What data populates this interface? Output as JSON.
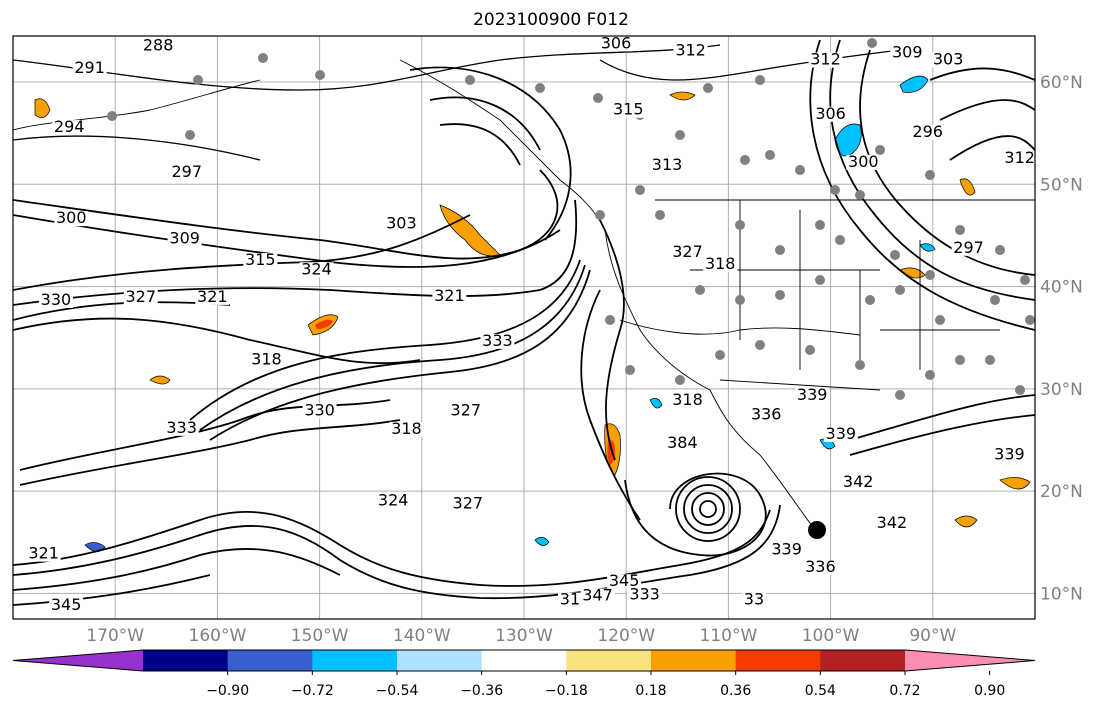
{
  "title": "2023100900 F012",
  "map": {
    "lon_range": [
      -180,
      -80
    ],
    "lat_range": [
      7.5,
      64.5
    ],
    "lon_ticks": [
      {
        "value": -170,
        "label": "170°W"
      },
      {
        "value": -160,
        "label": "160°W"
      },
      {
        "value": -150,
        "label": "150°W"
      },
      {
        "value": -140,
        "label": "140°W"
      },
      {
        "value": -130,
        "label": "130°W"
      },
      {
        "value": -120,
        "label": "120°W"
      },
      {
        "value": -110,
        "label": "110°W"
      },
      {
        "value": -100,
        "label": "100°W"
      },
      {
        "value": -90,
        "label": "90°W"
      }
    ],
    "lat_ticks": [
      {
        "value": 10,
        "label": "10°N"
      },
      {
        "value": 20,
        "label": "20°N"
      },
      {
        "value": 30,
        "label": "30°N"
      },
      {
        "value": 40,
        "label": "40°N"
      },
      {
        "value": 50,
        "label": "50°N"
      },
      {
        "value": 60,
        "label": "60°N"
      }
    ],
    "contour_labels": [
      {
        "text": "288",
        "lon": -165.8,
        "lat": 63.2
      },
      {
        "text": "291",
        "lon": -172.5,
        "lat": 61.0
      },
      {
        "text": "294",
        "lon": -174.5,
        "lat": 55.2
      },
      {
        "text": "297",
        "lon": -163.0,
        "lat": 50.8
      },
      {
        "text": "300",
        "lon": -174.3,
        "lat": 46.3
      },
      {
        "text": "309",
        "lon": -163.2,
        "lat": 44.3
      },
      {
        "text": "315",
        "lon": -155.8,
        "lat": 42.2
      },
      {
        "text": "324",
        "lon": -150.3,
        "lat": 41.3
      },
      {
        "text": "330",
        "lon": -175.8,
        "lat": 38.3
      },
      {
        "text": "327",
        "lon": -167.5,
        "lat": 38.6
      },
      {
        "text": "321",
        "lon": -160.5,
        "lat": 38.6
      },
      {
        "text": "318",
        "lon": -155.2,
        "lat": 32.5
      },
      {
        "text": "333",
        "lon": -163.5,
        "lat": 25.8
      },
      {
        "text": "330",
        "lon": -150.0,
        "lat": 27.5
      },
      {
        "text": "318",
        "lon": -141.5,
        "lat": 25.7
      },
      {
        "text": "327",
        "lon": -135.7,
        "lat": 27.5
      },
      {
        "text": "324",
        "lon": -142.8,
        "lat": 18.7
      },
      {
        "text": "327",
        "lon": -135.5,
        "lat": 18.4
      },
      {
        "text": "321",
        "lon": -177.0,
        "lat": 13.5
      },
      {
        "text": "345",
        "lon": -174.8,
        "lat": 8.5
      },
      {
        "text": "345",
        "lon": -120.2,
        "lat": 10.8
      },
      {
        "text": "347",
        "lon": -122.8,
        "lat": 9.4
      },
      {
        "text": "333",
        "lon": -118.2,
        "lat": 9.5
      },
      {
        "text": "31",
        "lon": -125.5,
        "lat": 9.0
      },
      {
        "text": "339",
        "lon": -104.3,
        "lat": 13.9
      },
      {
        "text": "342",
        "lon": -97.3,
        "lat": 20.5
      },
      {
        "text": "342",
        "lon": -94.0,
        "lat": 16.5
      },
      {
        "text": "339",
        "lon": -82.5,
        "lat": 23.2
      },
      {
        "text": "306",
        "lon": -121.0,
        "lat": 63.4
      },
      {
        "text": "312",
        "lon": -113.7,
        "lat": 62.7
      },
      {
        "text": "312",
        "lon": -100.5,
        "lat": 61.8
      },
      {
        "text": "309",
        "lon": -92.5,
        "lat": 62.5
      },
      {
        "text": "303",
        "lon": -88.5,
        "lat": 61.8
      },
      {
        "text": "315",
        "lon": -119.8,
        "lat": 56.9
      },
      {
        "text": "313",
        "lon": -116.0,
        "lat": 51.5
      },
      {
        "text": "303",
        "lon": -142.0,
        "lat": 45.8
      },
      {
        "text": "306",
        "lon": -100.0,
        "lat": 56.5
      },
      {
        "text": "296",
        "lon": -90.5,
        "lat": 54.7
      },
      {
        "text": "300",
        "lon": -96.8,
        "lat": 51.8
      },
      {
        "text": "297",
        "lon": -86.5,
        "lat": 43.4
      },
      {
        "text": "327",
        "lon": -114.0,
        "lat": 43.0
      },
      {
        "text": "318",
        "lon": -110.8,
        "lat": 41.8
      },
      {
        "text": "321",
        "lon": -137.3,
        "lat": 38.7
      },
      {
        "text": "333",
        "lon": -132.6,
        "lat": 34.3
      },
      {
        "text": "336",
        "lon": -106.3,
        "lat": 27.1
      },
      {
        "text": "339",
        "lon": -101.8,
        "lat": 29.0
      },
      {
        "text": "339",
        "lon": -99.0,
        "lat": 25.2
      },
      {
        "text": "384",
        "lon": -114.5,
        "lat": 24.3
      },
      {
        "text": "318",
        "lon": -114.0,
        "lat": 28.5
      },
      {
        "text": "312",
        "lon": -81.5,
        "lat": 52.2
      },
      {
        "text": "336",
        "lon": -101.0,
        "lat": 12.2
      },
      {
        "text": "33",
        "lon": -107.5,
        "lat": 9.0
      }
    ]
  },
  "colorbar": {
    "levels": [
      -0.9,
      -0.72,
      -0.54,
      -0.36,
      -0.18,
      0.18,
      0.36,
      0.54,
      0.72,
      0.9
    ],
    "tick_labels": [
      "−0.90",
      "−0.72",
      "−0.54",
      "−0.36",
      "−0.18",
      "0.18",
      "0.36",
      "0.54",
      "0.72",
      "0.90"
    ],
    "colors": [
      "#9932cc",
      "#00008b",
      "#3a5fcd",
      "#00bfff",
      "#b0e2ff",
      "#ffffff",
      "#fae37f",
      "#f7a000",
      "#f53c00",
      "#b22222",
      "#f88fb0"
    ]
  }
}
